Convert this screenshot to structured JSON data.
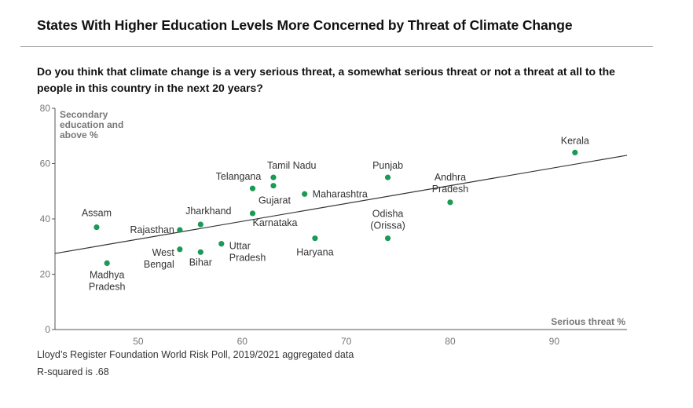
{
  "header": {
    "title": "States With Higher Education Levels More Concerned by Threat of Climate Change",
    "question": "Do you think that climate change is a very serious threat, a somewhat serious threat or not a threat at all to the people in this country in the next 20 years?"
  },
  "footer": {
    "source": "Lloyd’s Register Foundation World Risk Poll, 2019/2021 aggregated data",
    "note": "R-squared is .68"
  },
  "chart_data": {
    "type": "scatter",
    "xlabel": "Serious threat %",
    "ylabel": [
      "Secondary",
      "education and",
      "above %"
    ],
    "xlim": [
      42,
      97
    ],
    "ylim": [
      0,
      80
    ],
    "x_ticks": [
      50,
      60,
      70,
      80,
      90
    ],
    "y_ticks": [
      0,
      20,
      40,
      60,
      80
    ],
    "point_color": "#1a9a55",
    "trendline": {
      "x": [
        42,
        97
      ],
      "y": [
        27.5,
        63
      ]
    },
    "points": [
      {
        "label": [
          "Assam"
        ],
        "x": 46,
        "y": 37
      },
      {
        "label": [
          "Madhya",
          "Pradesh"
        ],
        "x": 47,
        "y": 24
      },
      {
        "label": [
          "Rajasthan"
        ],
        "x": 54,
        "y": 36
      },
      {
        "label": [
          "West",
          "Bengal"
        ],
        "x": 54,
        "y": 29
      },
      {
        "label": [
          "Jharkhand"
        ],
        "x": 56,
        "y": 38
      },
      {
        "label": [
          "Bihar"
        ],
        "x": 56,
        "y": 28
      },
      {
        "label": [
          "Uttar",
          "Pradesh"
        ],
        "x": 58,
        "y": 31
      },
      {
        "label": [
          "Telangana"
        ],
        "x": 61,
        "y": 51
      },
      {
        "label": [
          "Karnataka"
        ],
        "x": 61,
        "y": 42
      },
      {
        "label": [
          "Tamil Nadu"
        ],
        "x": 63,
        "y": 55
      },
      {
        "label": [
          "Gujarat"
        ],
        "x": 63,
        "y": 52
      },
      {
        "label": [
          "Maharashtra"
        ],
        "x": 66,
        "y": 49
      },
      {
        "label": [
          "Haryana"
        ],
        "x": 67,
        "y": 33
      },
      {
        "label": [
          "Punjab"
        ],
        "x": 74,
        "y": 55
      },
      {
        "label": [
          "Odisha",
          "(Orissa)"
        ],
        "x": 74,
        "y": 33
      },
      {
        "label": [
          "Andhra",
          "Pradesh"
        ],
        "x": 80,
        "y": 46
      },
      {
        "label": [
          "Kerala"
        ],
        "x": 92,
        "y": 64
      }
    ]
  }
}
